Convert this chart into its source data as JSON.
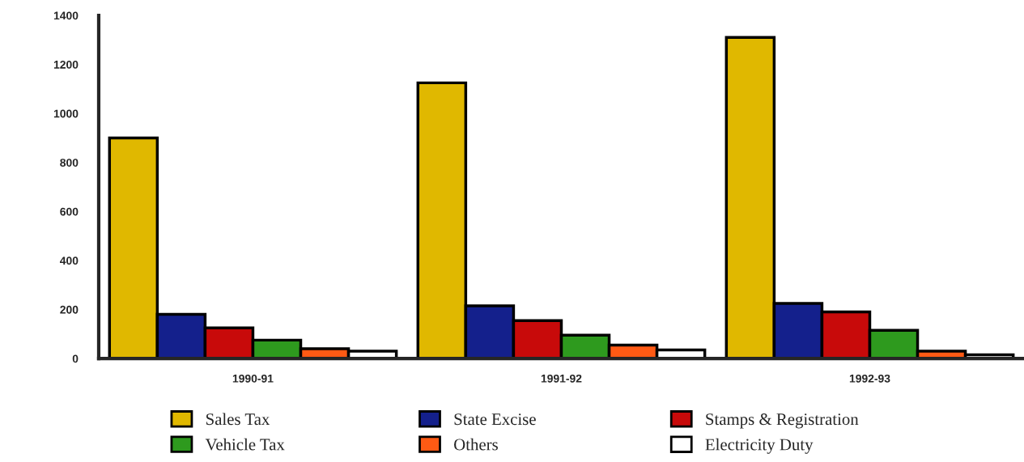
{
  "chart_data": {
    "type": "bar",
    "categories": [
      "1990-91",
      "1991-92",
      "1992-93"
    ],
    "series": [
      {
        "name": "Sales Tax",
        "color": "#e0b800",
        "values": [
          900,
          1125,
          1310
        ]
      },
      {
        "name": "State Excise",
        "color": "#14208c",
        "values": [
          180,
          215,
          225
        ]
      },
      {
        "name": "Stamps & Registration",
        "color": "#c80a0a",
        "values": [
          125,
          155,
          190
        ]
      },
      {
        "name": "Vehicle Tax",
        "color": "#2e9a1e",
        "values": [
          75,
          95,
          115
        ]
      },
      {
        "name": "Others",
        "color": "#ff5a14",
        "values": [
          40,
          55,
          30
        ]
      },
      {
        "name": "Electricity Duty",
        "color": "#ffffff",
        "values": [
          30,
          35,
          15
        ]
      }
    ],
    "ylim": [
      0,
      1400
    ],
    "yticks": [
      0,
      200,
      400,
      600,
      800,
      1000,
      1200,
      1400
    ],
    "grid": false,
    "legend": "bottom"
  }
}
